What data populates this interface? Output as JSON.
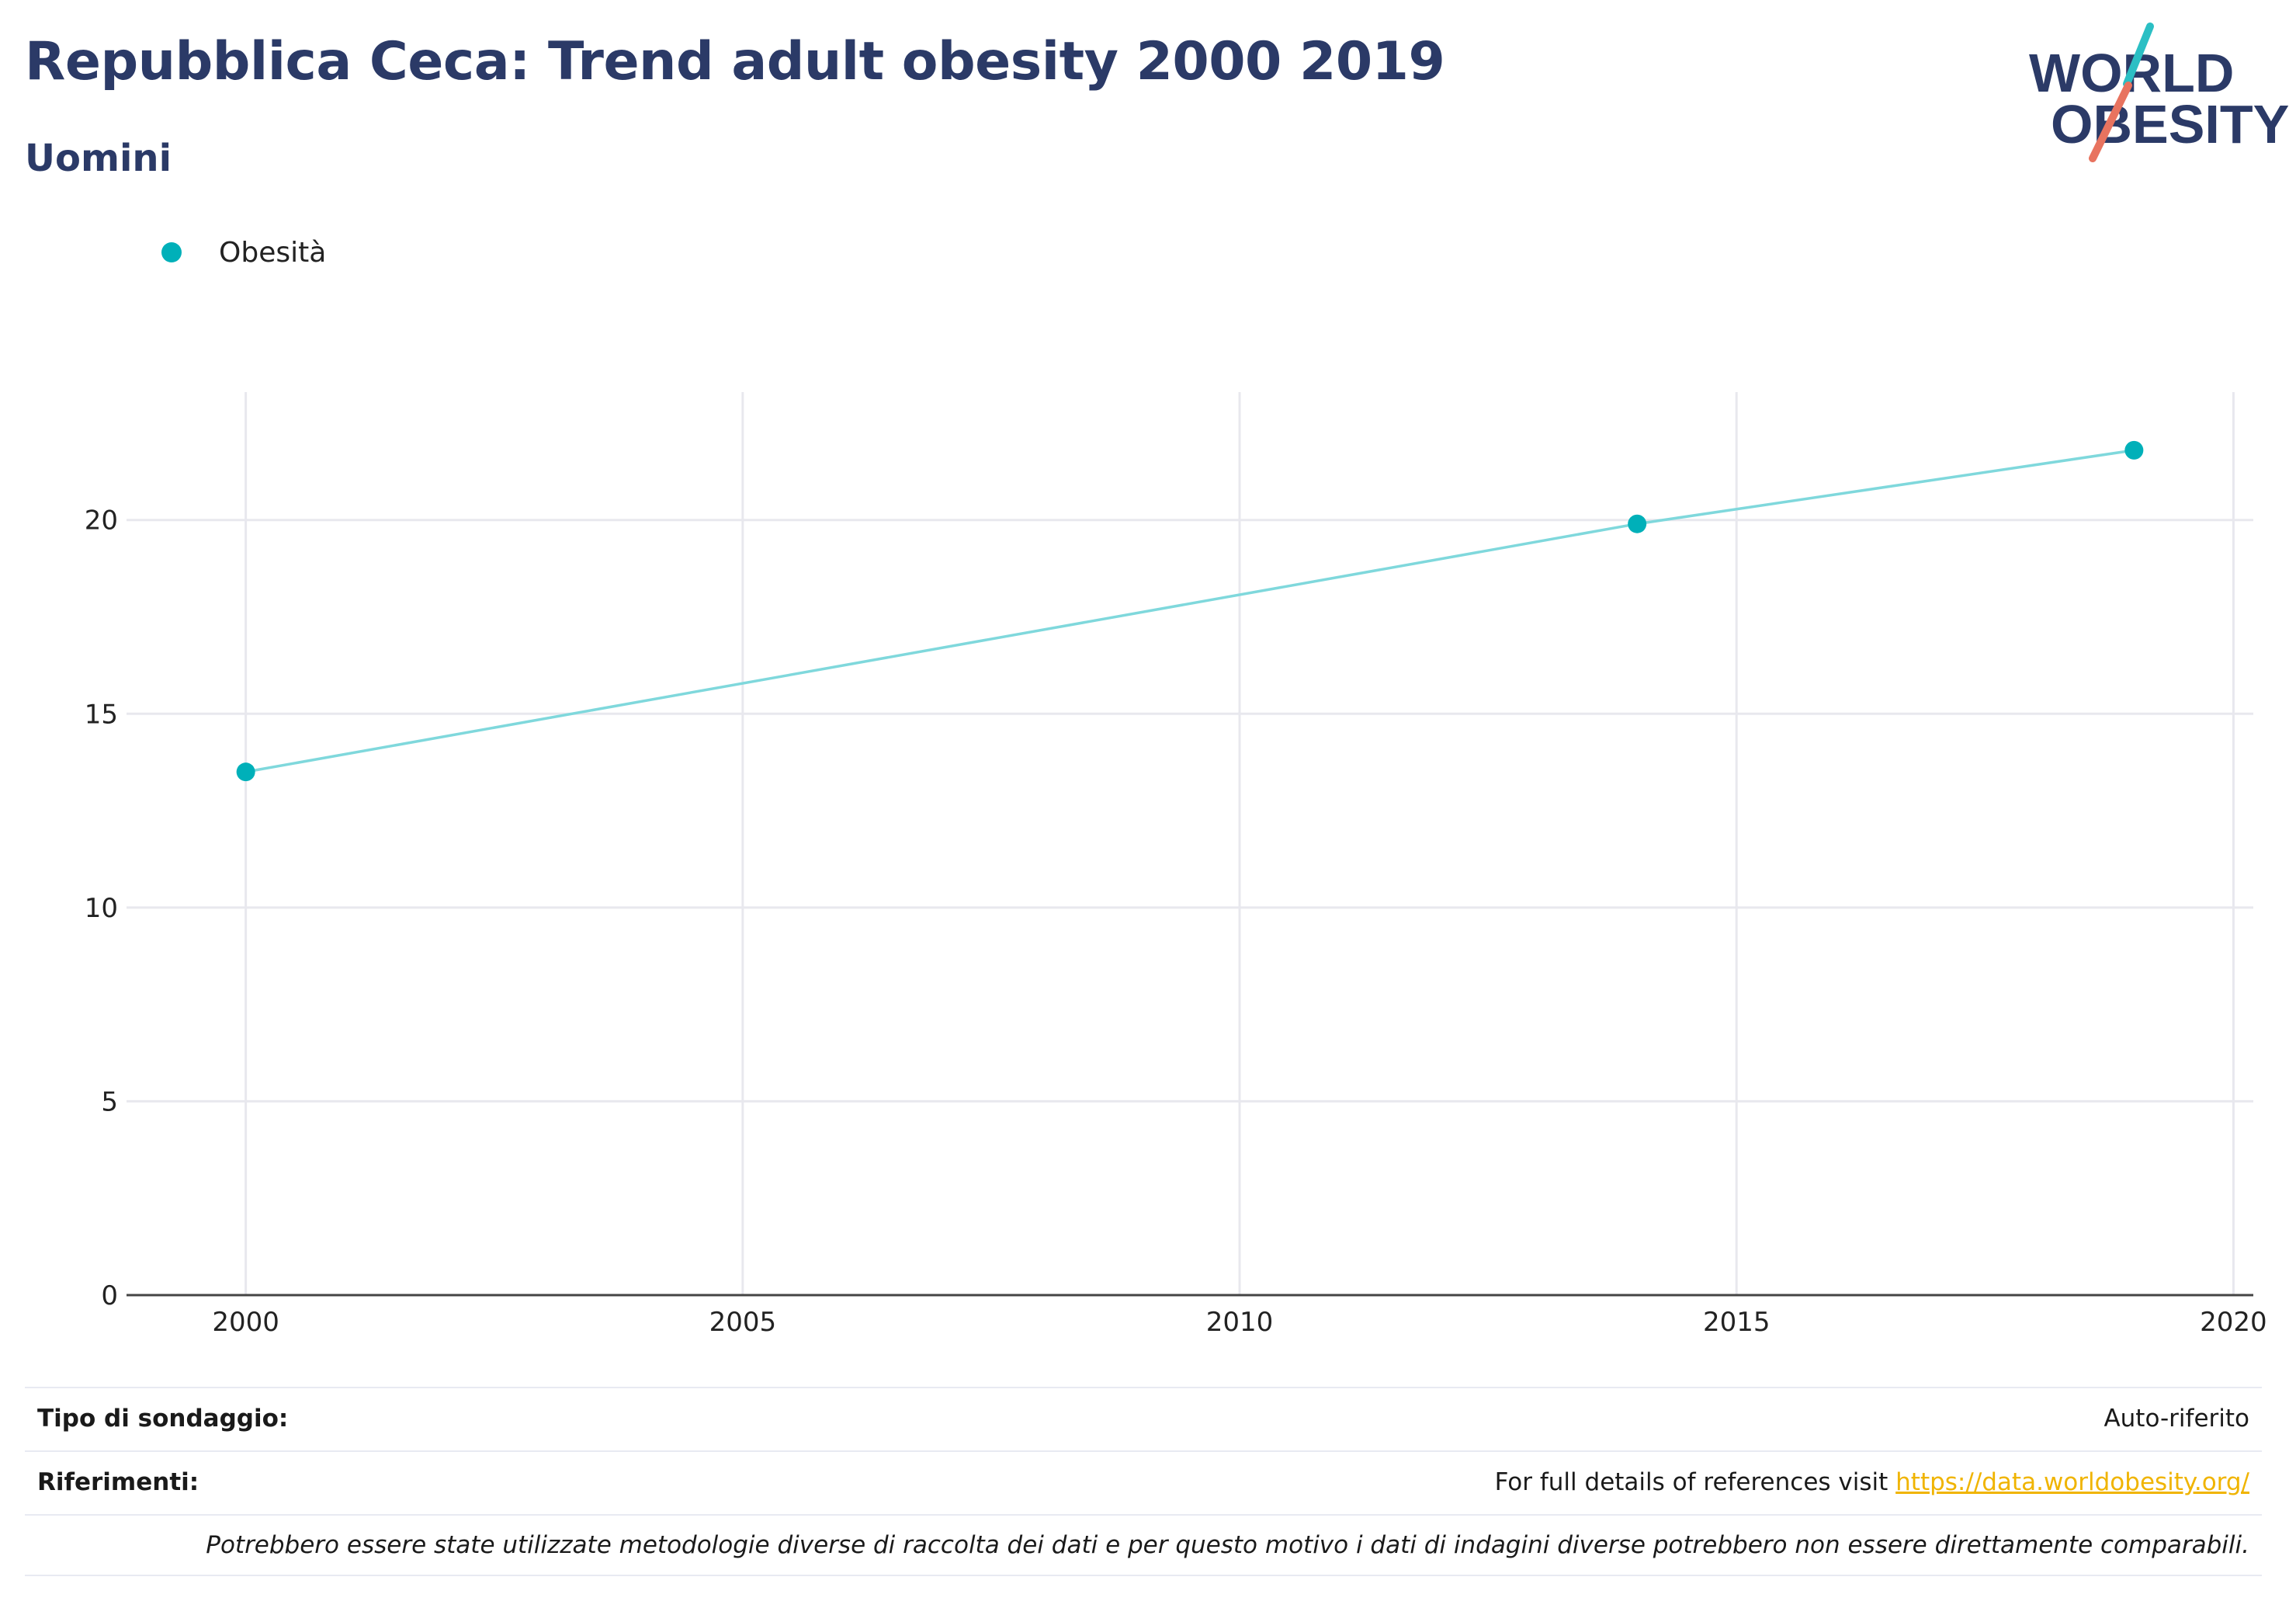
{
  "header": {
    "title": "Repubblica Ceca: Trend adult obesity 2000 2019",
    "subtitle": "Uomini"
  },
  "logo": {
    "line1": "WORLD",
    "line2": "OBESITY"
  },
  "colors": {
    "title": "#2b3a67",
    "series": "#00b0b9",
    "line": "#7fd8dc",
    "logo_slash_top": "#2bbfc4",
    "logo_slash_bottom": "#e8735f",
    "link": "#f0b400"
  },
  "chart_data": {
    "type": "line",
    "series": [
      {
        "name": "Obesità",
        "x": [
          2000,
          2014,
          2019
        ],
        "y": [
          13.5,
          19.9,
          21.8
        ]
      }
    ],
    "xticks": [
      "2000",
      "2005",
      "2010",
      "2015",
      "2020"
    ],
    "yticks": [
      "0",
      "5",
      "10",
      "15",
      "20"
    ],
    "xlim": [
      1998.8,
      2020.2
    ],
    "ylim": [
      0,
      23.3
    ],
    "grid": true,
    "legend_position": "top-left"
  },
  "footer": {
    "survey_label": "Tipo di sondaggio:",
    "survey_value": "Auto-riferito",
    "refs_label": "Riferimenti:",
    "refs_text": "For full details of references visit",
    "refs_link": "https://data.worldobesity.org/",
    "note": "Potrebbero essere state utilizzate metodologie diverse di raccolta dei dati e per questo motivo i dati di indagini diverse potrebbero non essere direttamente comparabili."
  }
}
